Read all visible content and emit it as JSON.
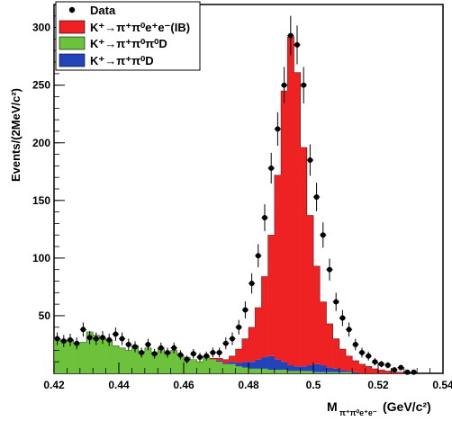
{
  "chart_data": {
    "type": "histogram",
    "xlabel": "M",
    "xlabel_sub": "π⁺π⁰e⁺e⁻",
    "xlabel_unit": "(GeV/c²)",
    "ylabel": "Events/(2MeV/c²)",
    "xlim": [
      0.42,
      0.54
    ],
    "ylim": [
      0,
      320
    ],
    "bin_width": 0.002,
    "x_ticks": [
      0.42,
      0.44,
      0.46,
      0.48,
      0.5,
      0.52,
      0.54
    ],
    "x_tick_labels": [
      "0.42",
      "0.44",
      "0.46",
      "0.48",
      "0.5",
      "0.52",
      "0.54"
    ],
    "y_ticks": [
      50,
      100,
      150,
      200,
      250,
      300
    ],
    "y_tick_labels": [
      "50",
      "100",
      "150",
      "200",
      "250",
      "300"
    ],
    "legend_position": "top-left",
    "legend": [
      {
        "label": "Data",
        "marker": "point",
        "color": "#000000"
      },
      {
        "label": "K⁺→π⁺π⁰e⁺e⁻(IB)",
        "marker": "box",
        "color": "#ee2222"
      },
      {
        "label": "K⁺→π⁺π⁰π⁰D",
        "marker": "box",
        "color": "#6cc23a"
      },
      {
        "label": "K⁺→π⁺π⁰D",
        "marker": "box",
        "color": "#2244bb"
      }
    ],
    "series": [
      {
        "name": "K⁺→π⁺π⁰π⁰D",
        "color": "#6cc23a",
        "bin_lows": [
          0.42,
          0.422,
          0.424,
          0.426,
          0.428,
          0.43,
          0.432,
          0.434,
          0.436,
          0.438,
          0.44,
          0.442,
          0.444,
          0.446,
          0.448,
          0.45,
          0.452,
          0.454,
          0.456,
          0.458,
          0.46,
          0.462,
          0.464,
          0.466,
          0.468,
          0.47,
          0.472,
          0.474,
          0.476,
          0.478,
          0.48,
          0.482,
          0.484,
          0.486,
          0.488,
          0.49,
          0.492,
          0.494,
          0.496,
          0.498,
          0.5,
          0.502,
          0.504,
          0.506,
          0.508,
          0.51,
          0.512,
          0.514,
          0.516,
          0.518,
          0.52,
          0.522,
          0.524,
          0.526,
          0.528,
          0.53
        ],
        "values": [
          30,
          28,
          29,
          26,
          27,
          36,
          33,
          30,
          29,
          24,
          22,
          20,
          24,
          19,
          22,
          18,
          22,
          17,
          20,
          16,
          14,
          12,
          10,
          15,
          12,
          10,
          8,
          8,
          6,
          5,
          4,
          4,
          4,
          3,
          3,
          3,
          2,
          2,
          2,
          2,
          1,
          1,
          1,
          1,
          1,
          1,
          0,
          0,
          0,
          0,
          0,
          0,
          0,
          0,
          0,
          0
        ]
      },
      {
        "name": "K⁺→π⁺π⁰D",
        "color": "#2244bb",
        "bin_lows": [
          0.42,
          0.422,
          0.424,
          0.426,
          0.428,
          0.43,
          0.432,
          0.434,
          0.436,
          0.438,
          0.44,
          0.442,
          0.444,
          0.446,
          0.448,
          0.45,
          0.452,
          0.454,
          0.456,
          0.458,
          0.46,
          0.462,
          0.464,
          0.466,
          0.468,
          0.47,
          0.472,
          0.474,
          0.476,
          0.478,
          0.48,
          0.482,
          0.484,
          0.486,
          0.488,
          0.49,
          0.492,
          0.494,
          0.496,
          0.498,
          0.5,
          0.502,
          0.504,
          0.506,
          0.508,
          0.51,
          0.512,
          0.514,
          0.516,
          0.518,
          0.52,
          0.522,
          0.524,
          0.526,
          0.528,
          0.53
        ],
        "values": [
          0,
          0,
          0,
          0,
          0,
          0,
          0,
          0,
          0,
          0,
          0,
          0,
          0,
          0,
          0,
          0,
          0,
          0,
          0,
          0,
          0,
          0,
          0,
          0,
          0,
          1,
          1,
          2,
          3,
          5,
          6,
          8,
          10,
          12,
          9,
          7,
          5,
          4,
          4,
          5,
          7,
          6,
          4,
          3,
          2,
          1,
          1,
          0,
          0,
          0,
          0,
          0,
          0,
          0,
          0,
          0
        ]
      },
      {
        "name": "K⁺→π⁺π⁰e⁺e⁻(IB)",
        "color": "#ee2222",
        "bin_lows": [
          0.42,
          0.422,
          0.424,
          0.426,
          0.428,
          0.43,
          0.432,
          0.434,
          0.436,
          0.438,
          0.44,
          0.442,
          0.444,
          0.446,
          0.448,
          0.45,
          0.452,
          0.454,
          0.456,
          0.458,
          0.46,
          0.462,
          0.464,
          0.466,
          0.468,
          0.47,
          0.472,
          0.474,
          0.476,
          0.478,
          0.48,
          0.482,
          0.484,
          0.486,
          0.488,
          0.49,
          0.492,
          0.494,
          0.496,
          0.498,
          0.5,
          0.502,
          0.504,
          0.506,
          0.508,
          0.51,
          0.512,
          0.514,
          0.516,
          0.518,
          0.52,
          0.522,
          0.524,
          0.526,
          0.528,
          0.53
        ],
        "values": [
          0,
          0,
          0,
          0,
          0,
          0,
          0,
          0,
          0,
          0,
          0,
          0,
          0,
          0,
          0,
          0,
          0,
          0,
          0,
          0,
          0,
          0,
          0,
          0,
          1,
          2,
          3,
          5,
          12,
          20,
          30,
          45,
          70,
          105,
          160,
          235,
          285,
          255,
          190,
          130,
          85,
          55,
          38,
          26,
          18,
          13,
          10,
          8,
          6,
          4,
          3,
          2,
          1,
          1,
          0,
          0
        ]
      }
    ],
    "data_points": {
      "name": "Data",
      "x": [
        0.421,
        0.423,
        0.425,
        0.427,
        0.429,
        0.431,
        0.433,
        0.435,
        0.437,
        0.439,
        0.441,
        0.443,
        0.445,
        0.447,
        0.449,
        0.451,
        0.453,
        0.455,
        0.457,
        0.459,
        0.461,
        0.463,
        0.465,
        0.467,
        0.469,
        0.471,
        0.473,
        0.475,
        0.477,
        0.479,
        0.481,
        0.483,
        0.485,
        0.487,
        0.489,
        0.491,
        0.493,
        0.495,
        0.497,
        0.499,
        0.501,
        0.503,
        0.505,
        0.507,
        0.509,
        0.511,
        0.513,
        0.515,
        0.517,
        0.519,
        0.521,
        0.523,
        0.525,
        0.527,
        0.529,
        0.531
      ],
      "y": [
        30,
        28,
        29,
        26,
        38,
        31,
        30,
        31,
        29,
        34,
        30,
        25,
        23,
        18,
        25,
        17,
        22,
        18,
        22,
        16,
        12,
        17,
        14,
        15,
        18,
        18,
        26,
        30,
        40,
        55,
        78,
        102,
        135,
        178,
        212,
        250,
        293,
        285,
        250,
        185,
        153,
        120,
        90,
        62,
        48,
        38,
        25,
        18,
        15,
        10,
        8,
        7,
        3,
        5,
        1,
        1
      ]
    }
  }
}
